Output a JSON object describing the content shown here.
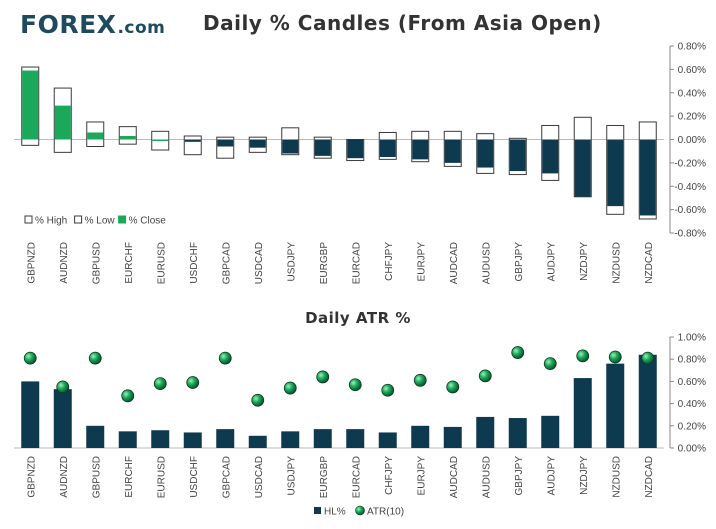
{
  "logo": {
    "brand": "FOREX",
    "suffix": ".com"
  },
  "colors": {
    "close_up": "#1aa85a",
    "close_down": "#0e3a4f",
    "hl": "#0e3a4f",
    "atr": "#1aa85a",
    "axis": "#888888",
    "text": "#333333"
  },
  "chart_data": [
    {
      "type": "bar",
      "title": "Daily % Candles (From Asia Open)",
      "categories": [
        "GBPNZD",
        "AUDNZD",
        "GBPUSD",
        "EURCHF",
        "EURUSD",
        "USDCHF",
        "GBPCAD",
        "USDCAD",
        "USDJPY",
        "EURGBP",
        "EURCAD",
        "CHFJPY",
        "EURJPY",
        "AUDCAD",
        "AUDUSD",
        "GBPJPY",
        "AUDJPY",
        "NZDJPY",
        "NZDUSD",
        "NZDCAD"
      ],
      "series": [
        {
          "name": "% High",
          "values": [
            0.62,
            0.44,
            0.15,
            0.11,
            0.07,
            0.03,
            0.02,
            0.02,
            0.1,
            0.02,
            0.0,
            0.06,
            0.07,
            0.07,
            0.05,
            0.01,
            0.12,
            0.19,
            0.12,
            0.15
          ]
        },
        {
          "name": "% Low",
          "values": [
            -0.05,
            -0.11,
            -0.06,
            -0.04,
            -0.09,
            -0.13,
            -0.16,
            -0.11,
            -0.13,
            -0.16,
            -0.18,
            -0.17,
            -0.19,
            -0.23,
            -0.29,
            -0.3,
            -0.35,
            -0.49,
            -0.64,
            -0.68
          ]
        },
        {
          "name": "% Close",
          "values": [
            0.59,
            0.29,
            0.06,
            0.03,
            0.0,
            -0.02,
            -0.06,
            -0.07,
            -0.12,
            -0.14,
            -0.16,
            -0.15,
            -0.17,
            -0.2,
            -0.24,
            -0.27,
            -0.29,
            -0.49,
            -0.57,
            -0.65
          ]
        }
      ],
      "ylim": [
        -0.8,
        0.8
      ],
      "yticks": [
        "0.80%",
        "0.60%",
        "0.40%",
        "0.20%",
        "0.00%",
        "-0.20%",
        "-0.40%",
        "-0.60%",
        "-0.80%"
      ],
      "legend": [
        "% High",
        "% Low",
        "% Close"
      ],
      "legend_position": "bottom-left"
    },
    {
      "type": "bar",
      "title": "Daily ATR %",
      "categories": [
        "GBPNZD",
        "AUDNZD",
        "GBPUSD",
        "EURCHF",
        "EURUSD",
        "USDCHF",
        "GBPCAD",
        "USDCAD",
        "USDJPY",
        "EURGBP",
        "EURCAD",
        "CHFJPY",
        "EURJPY",
        "AUDCAD",
        "AUDUSD",
        "GBPJPY",
        "AUDJPY",
        "NZDJPY",
        "NZDUSD",
        "NZDCAD"
      ],
      "series": [
        {
          "name": "HL%",
          "kind": "bar",
          "values": [
            0.6,
            0.53,
            0.2,
            0.15,
            0.16,
            0.14,
            0.17,
            0.11,
            0.15,
            0.17,
            0.17,
            0.14,
            0.2,
            0.19,
            0.28,
            0.27,
            0.29,
            0.63,
            0.76,
            0.84
          ]
        },
        {
          "name": "ATR(10)",
          "kind": "marker",
          "values": [
            0.81,
            0.55,
            0.81,
            0.47,
            0.58,
            0.59,
            0.81,
            0.43,
            0.54,
            0.64,
            0.57,
            0.52,
            0.61,
            0.55,
            0.65,
            0.86,
            0.76,
            0.83,
            0.82,
            0.81
          ]
        }
      ],
      "ylim": [
        0,
        1.0
      ],
      "yticks": [
        "1.00%",
        "0.80%",
        "0.60%",
        "0.40%",
        "0.20%",
        "0.00%"
      ],
      "legend": [
        "HL%",
        "ATR(10)"
      ],
      "legend_position": "bottom-center"
    }
  ]
}
